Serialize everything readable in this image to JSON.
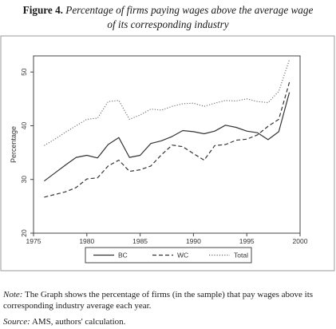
{
  "figure": {
    "label": "Figure 4.",
    "title_line1": "Percentage of firms paying wages above the average wage",
    "title_line2": "of its corresponding industry"
  },
  "note": {
    "prefix": "Note:",
    "text": "The Graph shows the percentage of firms (in the sample) that pay wages above its corresponding industry average each year."
  },
  "source": {
    "prefix": "Source:",
    "text": "AMS, authors' calculation."
  },
  "chart_data": {
    "type": "line",
    "title": "",
    "xlabel": "",
    "ylabel": "Percentage",
    "xlim": [
      1975,
      2000
    ],
    "ylim": [
      20,
      53
    ],
    "x_ticks": [
      1975,
      1980,
      1985,
      1990,
      1995,
      2000
    ],
    "y_ticks": [
      20,
      30,
      40,
      50
    ],
    "grid": false,
    "legend_position": "bottom",
    "x": [
      1976,
      1977,
      1978,
      1979,
      1980,
      1981,
      1982,
      1983,
      1984,
      1985,
      1986,
      1987,
      1988,
      1989,
      1990,
      1991,
      1992,
      1993,
      1994,
      1995,
      1996,
      1997,
      1998,
      1999
    ],
    "series": [
      {
        "name": "BC",
        "style": "solid",
        "values": [
          29.7,
          31.2,
          32.7,
          34.1,
          34.5,
          34.0,
          36.5,
          37.8,
          34.1,
          34.5,
          36.7,
          37.2,
          38.0,
          39.1,
          38.9,
          38.5,
          39.0,
          40.1,
          39.7,
          39.0,
          38.7,
          37.4,
          38.9,
          46.2
        ]
      },
      {
        "name": "WC",
        "style": "dashed",
        "values": [
          26.7,
          27.2,
          27.7,
          28.5,
          30.1,
          30.3,
          32.5,
          33.6,
          31.5,
          31.8,
          32.5,
          34.6,
          36.4,
          36.1,
          34.8,
          33.6,
          36.3,
          36.5,
          37.3,
          37.5,
          38.3,
          39.9,
          41.2,
          48.1
        ]
      },
      {
        "name": "Total",
        "style": "dotted",
        "values": [
          36.3,
          37.5,
          38.8,
          40.0,
          41.2,
          41.4,
          44.5,
          44.7,
          41.2,
          42.0,
          43.1,
          42.9,
          43.6,
          44.1,
          44.2,
          43.6,
          44.2,
          44.7,
          44.6,
          45.0,
          44.5,
          44.3,
          46.4,
          52.3
        ]
      }
    ]
  }
}
